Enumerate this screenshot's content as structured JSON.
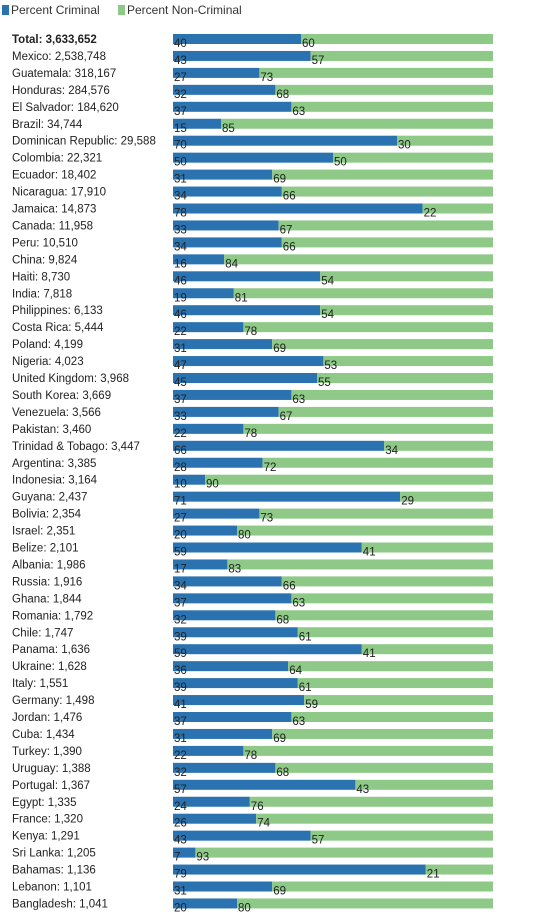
{
  "legend": {
    "criminal_label": "Percent Criminal",
    "noncriminal_label": "Percent Non-Criminal"
  },
  "colors": {
    "criminal": "#2a73b0",
    "noncriminal": "#8ec987",
    "text": "#222222"
  },
  "chart_data": {
    "type": "bar",
    "orientation": "horizontal",
    "stacked": true,
    "xlim": [
      0,
      100
    ],
    "grid": false,
    "legend_placement": "top-left",
    "categories": [
      "Total: 3,633,652",
      "Mexico: 2,538,748",
      "Guatemala: 318,167",
      "Honduras: 284,576",
      "El Salvador: 184,620",
      "Brazil: 34,744",
      "Dominican Republic: 29,588",
      "Colombia: 22,321",
      "Ecuador: 18,402",
      "Nicaragua: 17,910",
      "Jamaica: 14,873",
      "Canada: 11,958",
      "Peru: 10,510",
      "China: 9,824",
      "Haiti: 8,730",
      "India: 7,818",
      "Philippines: 6,133",
      "Costa Rica: 5,444",
      "Poland: 4,199",
      "Nigeria: 4,023",
      "United Kingdom: 3,968",
      "South Korea: 3,669",
      "Venezuela: 3,566",
      "Pakistan: 3,460",
      "Trinidad & Tobago: 3,447",
      "Argentina: 3,385",
      "Indonesia: 3,164",
      "Guyana: 2,437",
      "Bolivia: 2,354",
      "Israel: 2,351",
      "Belize: 2,101",
      "Albania: 1,986",
      "Russia: 1,916",
      "Ghana: 1,844",
      "Romania: 1,792",
      "Chile: 1,747",
      "Panama: 1,636",
      "Ukraine: 1,628",
      "Italy: 1,551",
      "Germany: 1,498",
      "Jordan: 1,476",
      "Cuba: 1,434",
      "Turkey: 1,390",
      "Uruguay: 1,388",
      "Portugal: 1,367",
      "Egypt: 1,335",
      "France: 1,320",
      "Kenya: 1,291",
      "Sri Lanka: 1,205",
      "Bahamas: 1,136",
      "Lebanon: 1,101",
      "Bangladesh: 1,041"
    ],
    "series": [
      {
        "name": "Percent Criminal",
        "values": [
          40,
          43,
          27,
          32,
          37,
          15,
          70,
          50,
          31,
          34,
          78,
          33,
          34,
          16,
          46,
          19,
          46,
          22,
          31,
          47,
          45,
          37,
          33,
          22,
          66,
          28,
          10,
          71,
          27,
          20,
          59,
          17,
          34,
          37,
          32,
          39,
          59,
          36,
          39,
          41,
          37,
          31,
          22,
          32,
          57,
          24,
          26,
          43,
          7,
          79,
          31,
          20
        ]
      },
      {
        "name": "Percent Non-Criminal",
        "values": [
          60,
          57,
          73,
          68,
          63,
          85,
          30,
          50,
          69,
          66,
          22,
          67,
          66,
          84,
          54,
          81,
          54,
          78,
          69,
          53,
          55,
          63,
          67,
          78,
          34,
          72,
          90,
          29,
          73,
          80,
          41,
          83,
          66,
          63,
          68,
          61,
          41,
          64,
          61,
          59,
          63,
          69,
          78,
          68,
          43,
          76,
          74,
          57,
          93,
          21,
          69,
          80
        ]
      }
    ]
  }
}
